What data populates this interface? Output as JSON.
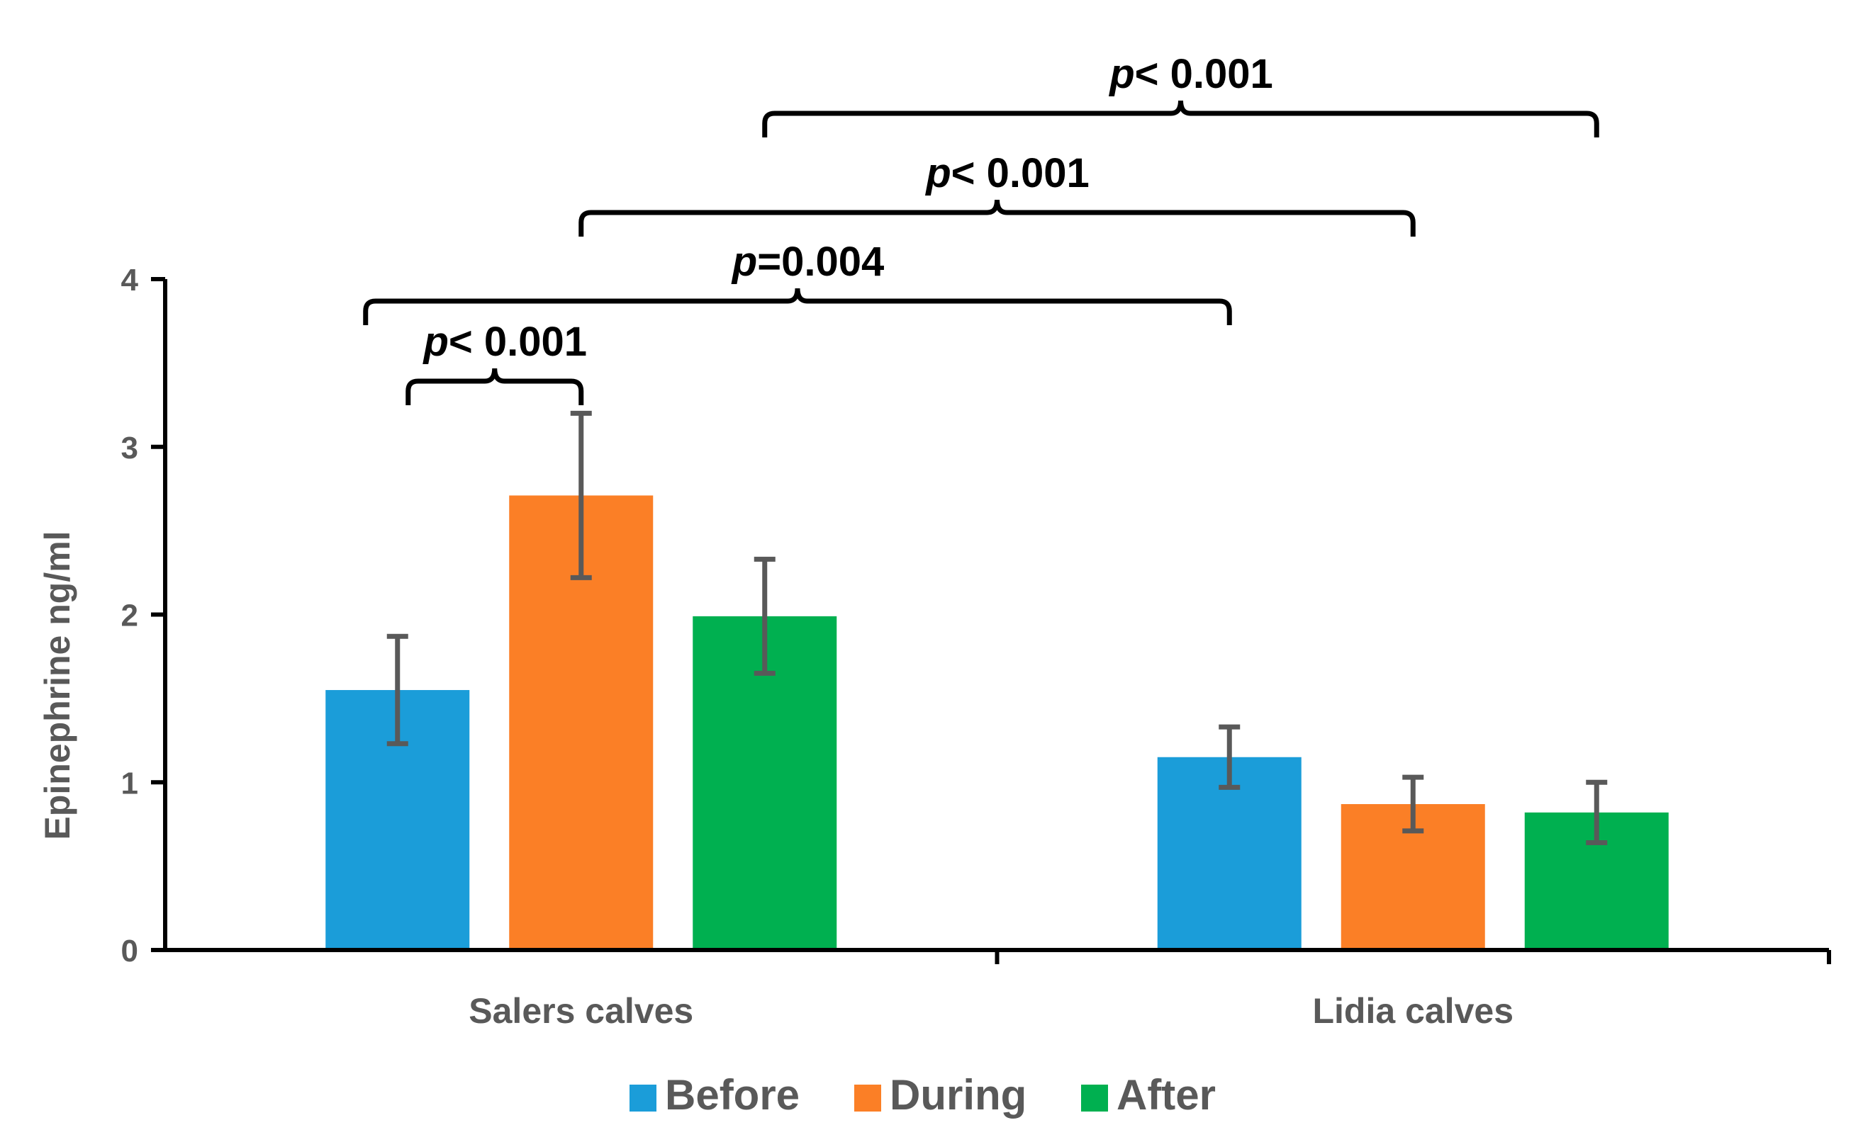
{
  "chart_data": {
    "type": "bar",
    "title": "",
    "xlabel": "",
    "ylabel": "Epinephrine ng/ml",
    "ylim": [
      0,
      4
    ],
    "yticks": [
      0,
      1,
      2,
      3,
      4
    ],
    "grid": false,
    "legend_position": "bottom",
    "categories": [
      "Salers calves",
      "Lidia calves"
    ],
    "series": [
      {
        "name": "Before",
        "color": "#1b9dd9",
        "values": [
          1.55,
          1.15
        ],
        "errors": [
          0.32,
          0.18
        ]
      },
      {
        "name": "During",
        "color": "#fb7f26",
        "values": [
          2.71,
          0.87
        ],
        "errors": [
          0.49,
          0.16
        ]
      },
      {
        "name": "After",
        "color": "#00b050",
        "values": [
          1.99,
          0.82
        ],
        "errors": [
          0.34,
          0.18
        ]
      }
    ],
    "significance": [
      {
        "label_italic": "p",
        "label_rest": "< 0.001",
        "from": {
          "category": 0,
          "series": 0
        },
        "to": {
          "category": 0,
          "series": 1
        }
      },
      {
        "label_italic": "p",
        "label_rest": "=0.004",
        "from": {
          "category": 0,
          "series": 0
        },
        "to": {
          "category": 1,
          "series": 0
        }
      },
      {
        "label_italic": "p",
        "label_rest": "< 0.001",
        "from": {
          "category": 0,
          "series": 1
        },
        "to": {
          "category": 1,
          "series": 1
        }
      },
      {
        "label_italic": "p",
        "label_rest": "< 0.001",
        "from": {
          "category": 0,
          "series": 2
        },
        "to": {
          "category": 1,
          "series": 2
        }
      }
    ]
  }
}
